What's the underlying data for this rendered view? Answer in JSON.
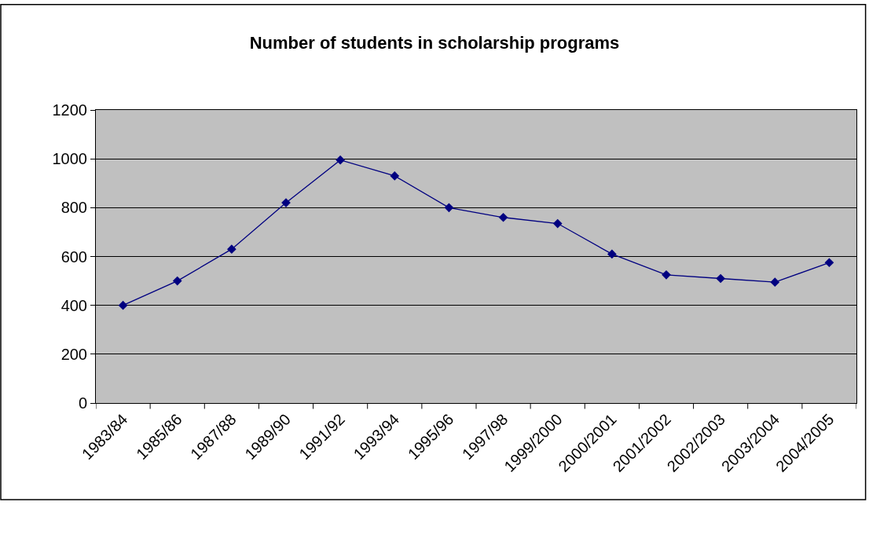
{
  "chart_data": {
    "type": "line",
    "title": "Number of students in scholarship programs",
    "categories": [
      "1983/84",
      "1985/86",
      "1987/88",
      "1989/90",
      "1991/92",
      "1993/94",
      "1995/96",
      "1997/98",
      "1999/2000",
      "2000/2001",
      "2001/2002",
      "2002/2003",
      "2003/2004",
      "2004/2005"
    ],
    "series": [
      {
        "color": "#000080",
        "values": [
          400,
          500,
          630,
          820,
          995,
          930,
          800,
          760,
          735,
          610,
          525,
          510,
          495,
          575
        ]
      }
    ],
    "ylim": [
      0,
      1200
    ],
    "yticks": [
      0,
      200,
      400,
      600,
      800,
      1000,
      1200
    ],
    "grid": "y",
    "legend": false,
    "marker": "diamond",
    "line_style": "solid"
  }
}
